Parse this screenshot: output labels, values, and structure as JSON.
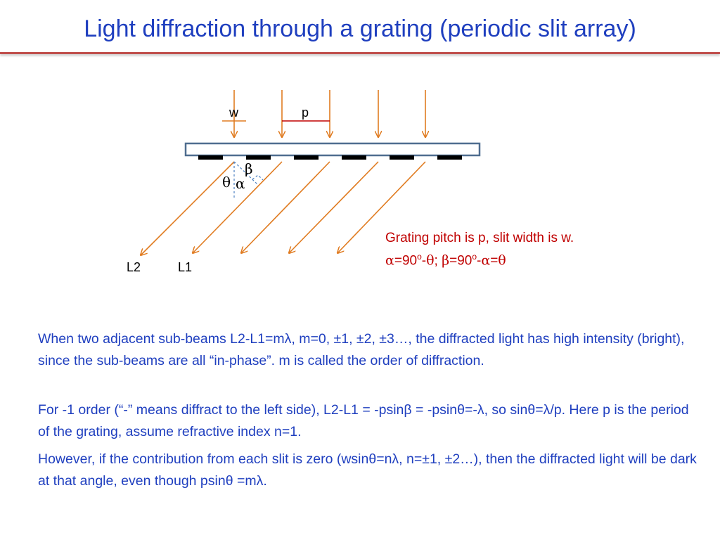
{
  "title": "Light diffraction through a grating (periodic slit array)",
  "diagram": {
    "label_w": "w",
    "label_p": "p",
    "label_L2": "L2",
    "label_L1": "L1",
    "label_beta": "β",
    "label_theta": "θ",
    "label_alpha": "α",
    "colors": {
      "beam": "#e07b20",
      "plate": "#4f6d8f",
      "slit": "#000000",
      "guide": "#4a7fc1",
      "title": "#1f3fbf",
      "note": "#c00000",
      "rule": "#c0504d"
    }
  },
  "note": {
    "line1": "Grating pitch is p, slit width is w.",
    "line2_alpha": "α",
    "line2_a": "=90",
    "sup1": "o",
    "line2_b": "-",
    "line2_theta": "θ",
    "line2_c": "; ",
    "line2_beta": "β",
    "line2_d": "=90",
    "sup2": "o",
    "line2_e": "-",
    "line2_alpha2": "α",
    "line2_f": "=",
    "line2_theta2": "θ"
  },
  "paragraphs": {
    "p1": "When two adjacent sub-beams L2-L1=mλ, m=0, ±1, ±2, ±3…, the diffracted light has high intensity (bright), since the sub-beams are all “in-phase”. m is called the order of diffraction.",
    "p2": "For -1 order (“-” means diffract to the left side), L2-L1 = -psinβ = -psinθ=-λ, so sinθ=λ/p. Here p is the period of the grating, assume refractive index n=1.",
    "p3": "However, if the contribution from each slit is zero (wsinθ=nλ, n=±1, ±2…), then the diffracted light will be dark at that angle, even though psinθ =mλ."
  }
}
